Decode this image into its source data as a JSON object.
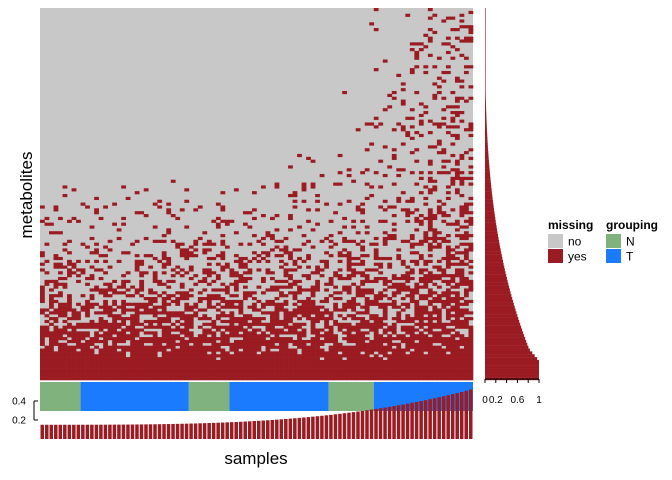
{
  "chart_data": {
    "type": "heatmap",
    "title": "",
    "xlabel": "samples",
    "ylabel": "metabolites",
    "colors": {
      "no": "#c8c8c8",
      "yes": "#9b1b22",
      "N": "#7fb27c",
      "T": "#1a7bff"
    },
    "legend": {
      "placement": "right",
      "groups": [
        {
          "title": "missing",
          "items": [
            {
              "label": "no",
              "color": "#c8c8c8"
            },
            {
              "label": "yes",
              "color": "#9b1b22"
            }
          ]
        },
        {
          "title": "grouping",
          "items": [
            {
              "label": "N",
              "color": "#7fb27c"
            },
            {
              "label": "T",
              "color": "#1a7bff"
            }
          ]
        }
      ]
    },
    "n_samples": 96,
    "n_metabolites": 130,
    "grouping_blocks": [
      {
        "group": "N",
        "from_sample": 1,
        "to_sample": 9
      },
      {
        "group": "T",
        "from_sample": 10,
        "to_sample": 33
      },
      {
        "group": "N",
        "from_sample": 34,
        "to_sample": 42
      },
      {
        "group": "T",
        "from_sample": 43,
        "to_sample": 64
      },
      {
        "group": "N",
        "from_sample": 65,
        "to_sample": 74
      },
      {
        "group": "T",
        "from_sample": 75,
        "to_sample": 96
      }
    ],
    "sample_missing_fraction": {
      "min": 0.15,
      "max": 0.52,
      "ticks": [
        "0.2",
        "0.4"
      ]
    },
    "metabolite_missing_fraction": {
      "min": 0.0,
      "max": 1.0,
      "ticks": [
        "0",
        "0.2",
        "0.6",
        "1"
      ],
      "tick_values": [
        0,
        0.2,
        0.6,
        1
      ]
    }
  }
}
